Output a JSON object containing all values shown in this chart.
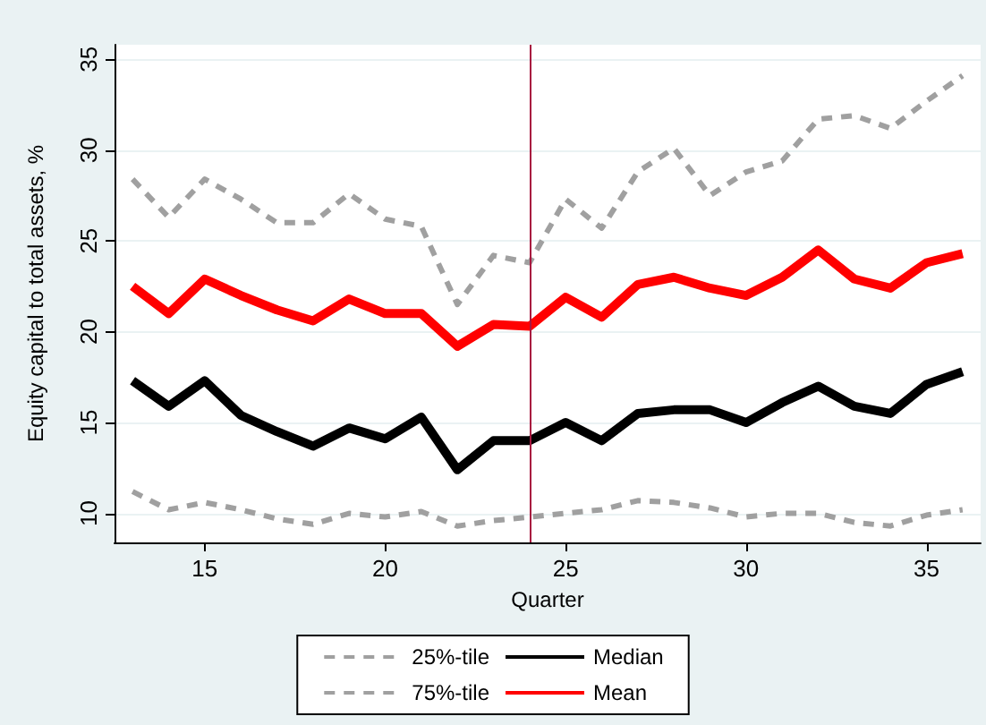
{
  "chart_data": {
    "type": "line",
    "xlabel": "Quarter",
    "ylabel": "Equity capital to total assets, %",
    "x": [
      13,
      14,
      15,
      16,
      17,
      18,
      19,
      20,
      21,
      22,
      23,
      24,
      25,
      26,
      27,
      28,
      29,
      30,
      31,
      32,
      33,
      34,
      35,
      36
    ],
    "series": [
      {
        "name": "25%-tile",
        "color": "#a0a0a0",
        "line_style": "dashed",
        "values": [
          11.2,
          10.2,
          10.6,
          10.2,
          9.7,
          9.4,
          10.0,
          9.8,
          10.1,
          9.3,
          9.6,
          9.8,
          10.0,
          10.2,
          10.7,
          10.6,
          10.3,
          9.8,
          10.0,
          10.0,
          9.5,
          9.3,
          9.9,
          10.2
        ]
      },
      {
        "name": "Median",
        "color": "#000000",
        "line_style": "solid",
        "values": [
          17.3,
          15.9,
          17.3,
          15.4,
          14.5,
          13.7,
          14.7,
          14.1,
          15.3,
          12.4,
          14.0,
          14.0,
          15.0,
          14.0,
          15.5,
          15.7,
          15.7,
          15.0,
          16.1,
          17.0,
          15.9,
          15.5,
          17.1,
          17.8
        ]
      },
      {
        "name": "75%-tile",
        "color": "#a0a0a0",
        "line_style": "dashed",
        "values": [
          28.4,
          26.3,
          28.4,
          27.3,
          26.0,
          26.0,
          27.6,
          26.2,
          25.8,
          21.5,
          24.2,
          23.8,
          27.3,
          25.7,
          28.8,
          30.1,
          27.5,
          28.8,
          29.4,
          31.7,
          31.9,
          31.2,
          32.7,
          34.1
        ]
      },
      {
        "name": "Mean",
        "color": "#ff0000",
        "line_style": "solid",
        "values": [
          22.5,
          21.0,
          22.9,
          22.0,
          21.2,
          20.6,
          21.8,
          21.0,
          21.0,
          19.2,
          20.4,
          20.3,
          21.9,
          20.8,
          22.6,
          23.0,
          22.4,
          22.0,
          23.0,
          24.5,
          22.9,
          22.4,
          23.8,
          24.3
        ]
      }
    ],
    "xlim": [
      12.5,
      36.5
    ],
    "xticks": [
      15,
      20,
      25,
      30,
      35
    ],
    "ylim": [
      8.4,
      35.8
    ],
    "yticks": [
      10,
      15,
      20,
      25,
      30,
      35
    ],
    "ref_lines": [
      {
        "axis": "x",
        "value": 24,
        "color": "#a8173f"
      }
    ],
    "grid": "y",
    "legend": "bottom",
    "marker": "none"
  }
}
